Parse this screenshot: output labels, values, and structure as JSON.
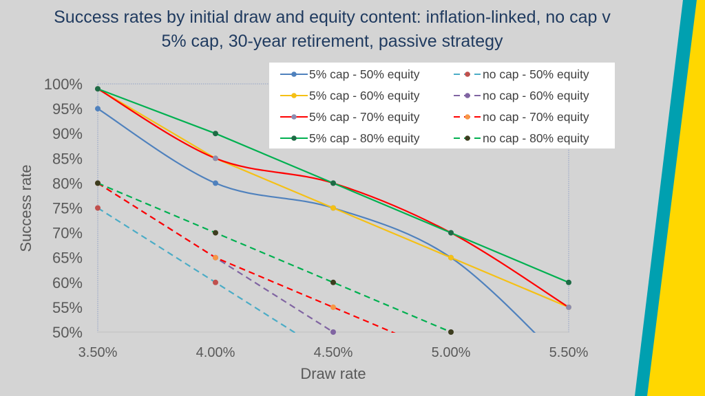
{
  "chart_data": {
    "type": "line",
    "title_lines": [
      "Success rates by initial draw and equity content: inflation-linked, no cap v",
      "5% cap, 30-year retirement, passive strategy"
    ],
    "xlabel": "Draw rate",
    "ylabel": "Success rate",
    "x": [
      3.5,
      4.0,
      4.5,
      5.0,
      5.5
    ],
    "x_tick_labels": [
      "3.50%",
      "4.00%",
      "4.50%",
      "5.00%",
      "5.50%"
    ],
    "ylim": [
      50,
      100
    ],
    "y_ticks": [
      100,
      95,
      90,
      85,
      80,
      75,
      70,
      65,
      60,
      55,
      50
    ],
    "y_tick_labels": [
      "100%",
      "95%",
      "90%",
      "85%",
      "80%",
      "75%",
      "70%",
      "65%",
      "60%",
      "55%",
      "50%"
    ],
    "grid": false,
    "legend_position": "top-right",
    "series": [
      {
        "name": "5% cap - 50% equity",
        "color": "#4f81bd",
        "dashed": false,
        "smooth": true,
        "points": [
          [
            3.5,
            95
          ],
          [
            4.0,
            80
          ],
          [
            4.5,
            75
          ],
          [
            5.0,
            65
          ],
          [
            5.5,
            43
          ]
        ],
        "markers": [
          0,
          1,
          2,
          3
        ]
      },
      {
        "name": "no cap - 50% equity",
        "color": "#4bacc6",
        "dashed": true,
        "marker_color": "#c0504d",
        "points": [
          [
            3.5,
            75
          ],
          [
            4.0,
            60
          ],
          [
            4.5,
            45
          ]
        ],
        "markers": [
          0,
          1
        ]
      },
      {
        "name": "5% cap - 60% equity",
        "color": "#f5c015",
        "dashed": false,
        "points": [
          [
            3.5,
            99
          ],
          [
            4.0,
            85
          ],
          [
            4.5,
            75
          ],
          [
            5.0,
            65
          ],
          [
            5.5,
            55
          ]
        ],
        "markers": [
          0,
          1,
          2,
          3,
          4
        ]
      },
      {
        "name": "no cap - 60% equity",
        "color": "#8064a2",
        "dashed": true,
        "points": [
          [
            3.5,
            80
          ],
          [
            4.0,
            65
          ],
          [
            4.5,
            50
          ]
        ],
        "markers": [
          0,
          1,
          2
        ]
      },
      {
        "name": "5% cap - 70% equity",
        "color": "#ff0000",
        "dashed": false,
        "smooth": true,
        "marker_color": "#8c8cb0",
        "points": [
          [
            3.5,
            99
          ],
          [
            4.0,
            85
          ],
          [
            4.5,
            80
          ],
          [
            5.0,
            70
          ],
          [
            5.5,
            55
          ]
        ],
        "markers": [
          0,
          1,
          2,
          3,
          4
        ]
      },
      {
        "name": "no cap - 70% equity",
        "color": "#ff0000",
        "dashed": true,
        "marker_color": "#f79646",
        "points": [
          [
            3.5,
            80
          ],
          [
            4.0,
            65
          ],
          [
            4.5,
            55
          ],
          [
            5.0,
            45
          ]
        ],
        "markers": [
          0,
          1,
          2
        ]
      },
      {
        "name": "5% cap - 80% equity",
        "color": "#00b050",
        "dashed": false,
        "marker_color": "#1e6b45",
        "points": [
          [
            3.5,
            99
          ],
          [
            4.0,
            90
          ],
          [
            4.5,
            80
          ],
          [
            5.0,
            70
          ],
          [
            5.5,
            60
          ]
        ],
        "markers": [
          0,
          1,
          2,
          3,
          4
        ]
      },
      {
        "name": "no cap - 80% equity",
        "color": "#00b050",
        "dashed": true,
        "marker_color": "#3d3d1f",
        "points": [
          [
            3.5,
            80
          ],
          [
            4.0,
            70
          ],
          [
            4.5,
            60
          ],
          [
            5.0,
            50
          ]
        ],
        "markers": [
          0,
          1,
          2,
          3
        ]
      }
    ]
  },
  "colors": {
    "background": "#d4d4d4",
    "title": "#1f3a5f",
    "axis_text": "#595959",
    "teal_stripe": "#00a0b0",
    "yellow_stripe": "#ffd700"
  }
}
